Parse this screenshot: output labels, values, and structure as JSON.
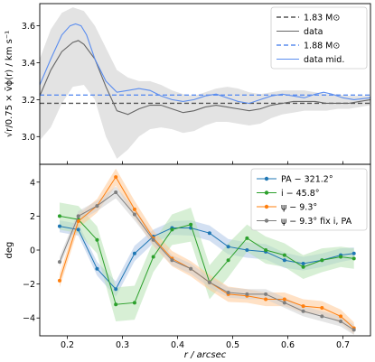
{
  "chart_data": [
    {
      "type": "line",
      "ylabel": "√r/0.75 × v̄ϕ(r) / km s⁻¹",
      "xlim": [
        0.15,
        0.75
      ],
      "ylim": [
        2.85,
        3.72
      ],
      "yticks": [
        3.0,
        3.2,
        3.4,
        3.6
      ],
      "ytick_labels": [
        "3.0",
        "3.2",
        "3.4",
        "3.6"
      ],
      "grid": false,
      "legend_position": "upper-right",
      "series": [
        {
          "name": "1.83 M⊙",
          "color": "#555555",
          "dash": "dashed",
          "x": [
            0.15,
            0.75
          ],
          "y": [
            3.18,
            3.18
          ]
        },
        {
          "name": "data",
          "color": "#666666",
          "dash": "solid",
          "x": [
            0.15,
            0.17,
            0.19,
            0.21,
            0.22,
            0.23,
            0.25,
            0.27,
            0.29,
            0.31,
            0.33,
            0.35,
            0.37,
            0.39,
            0.41,
            0.43,
            0.45,
            0.47,
            0.49,
            0.51,
            0.53,
            0.55,
            0.57,
            0.59,
            0.61,
            0.63,
            0.65,
            0.67,
            0.69,
            0.71,
            0.73,
            0.75
          ],
          "y": [
            3.22,
            3.36,
            3.46,
            3.51,
            3.52,
            3.5,
            3.42,
            3.27,
            3.14,
            3.12,
            3.15,
            3.17,
            3.17,
            3.15,
            3.13,
            3.14,
            3.16,
            3.17,
            3.16,
            3.15,
            3.14,
            3.15,
            3.17,
            3.18,
            3.19,
            3.19,
            3.19,
            3.18,
            3.18,
            3.18,
            3.19,
            3.2
          ]
        },
        {
          "name": "1.88 M⊙",
          "color": "#5b8def",
          "dash": "dashed",
          "x": [
            0.15,
            0.75
          ],
          "y": [
            3.225,
            3.225
          ]
        },
        {
          "name": "data mid.",
          "color": "#5b8def",
          "dash": "solid",
          "x": [
            0.15,
            0.17,
            0.19,
            0.205,
            0.215,
            0.225,
            0.235,
            0.25,
            0.27,
            0.29,
            0.31,
            0.33,
            0.35,
            0.37,
            0.39,
            0.41,
            0.43,
            0.45,
            0.47,
            0.49,
            0.51,
            0.53,
            0.55,
            0.57,
            0.59,
            0.61,
            0.63,
            0.65,
            0.665,
            0.68,
            0.7,
            0.72,
            0.75
          ],
          "y": [
            3.28,
            3.42,
            3.55,
            3.6,
            3.61,
            3.6,
            3.55,
            3.42,
            3.3,
            3.24,
            3.25,
            3.26,
            3.25,
            3.22,
            3.2,
            3.19,
            3.2,
            3.22,
            3.23,
            3.21,
            3.19,
            3.18,
            3.2,
            3.22,
            3.23,
            3.22,
            3.21,
            3.23,
            3.24,
            3.23,
            3.21,
            3.2,
            3.21
          ]
        }
      ],
      "band": {
        "color": "#e3e3e3",
        "x": [
          0.15,
          0.17,
          0.19,
          0.21,
          0.23,
          0.25,
          0.27,
          0.29,
          0.31,
          0.33,
          0.35,
          0.37,
          0.39,
          0.41,
          0.43,
          0.45,
          0.47,
          0.49,
          0.51,
          0.53,
          0.55,
          0.57,
          0.59,
          0.61,
          0.63,
          0.65,
          0.67,
          0.69,
          0.71,
          0.73,
          0.75
        ],
        "upper": [
          3.42,
          3.58,
          3.67,
          3.7,
          3.68,
          3.6,
          3.48,
          3.36,
          3.32,
          3.3,
          3.3,
          3.28,
          3.25,
          3.23,
          3.22,
          3.24,
          3.26,
          3.27,
          3.26,
          3.24,
          3.23,
          3.24,
          3.25,
          3.25,
          3.25,
          3.24,
          3.23,
          3.23,
          3.22,
          3.22,
          3.22
        ],
        "lower": [
          2.98,
          3.05,
          3.18,
          3.27,
          3.28,
          3.2,
          3.0,
          2.88,
          2.93,
          3.0,
          3.04,
          3.05,
          3.04,
          3.02,
          3.03,
          3.06,
          3.08,
          3.08,
          3.07,
          3.06,
          3.07,
          3.1,
          3.12,
          3.13,
          3.14,
          3.14,
          3.14,
          3.15,
          3.15,
          3.16,
          3.17
        ]
      }
    },
    {
      "type": "line",
      "xlabel": "r / arcsec",
      "ylabel": "deg",
      "xlim": [
        0.15,
        0.75
      ],
      "ylim": [
        -5.05,
        5.05
      ],
      "xticks": [
        0.2,
        0.3,
        0.4,
        0.5,
        0.6,
        0.7
      ],
      "xtick_labels": [
        "0.2",
        "0.3",
        "0.4",
        "0.5",
        "0.6",
        "0.7"
      ],
      "yticks": [
        -4,
        -2,
        0,
        2,
        4
      ],
      "ytick_labels": [
        "−4",
        "−2",
        "0",
        "2",
        "4"
      ],
      "grid": false,
      "legend_position": "upper-right",
      "x": [
        0.186,
        0.22,
        0.254,
        0.288,
        0.322,
        0.356,
        0.39,
        0.424,
        0.458,
        0.492,
        0.526,
        0.56,
        0.594,
        0.628,
        0.662,
        0.696,
        0.72
      ],
      "series": [
        {
          "name": "PA − 321.2°",
          "color": "#1f77b4",
          "band_color": "#aec7e8",
          "y": [
            1.4,
            1.2,
            -1.1,
            -2.3,
            -0.2,
            0.8,
            1.3,
            1.3,
            1.0,
            0.2,
            0.0,
            -0.1,
            -0.6,
            -0.8,
            -0.6,
            -0.3,
            -0.2
          ],
          "err": [
            0.35,
            0.35,
            0.4,
            0.45,
            0.45,
            0.4,
            0.4,
            0.45,
            0.45,
            0.45,
            0.45,
            0.45,
            0.45,
            0.4,
            0.4,
            0.4,
            0.35
          ]
        },
        {
          "name": "i − 45.8°",
          "color": "#2ca02c",
          "band_color": "#b7e1b2",
          "y": [
            2.0,
            1.8,
            0.6,
            -3.2,
            -3.1,
            -0.4,
            1.2,
            1.5,
            -1.9,
            -0.6,
            0.7,
            0.0,
            -0.3,
            -1.0,
            -0.6,
            -0.4,
            -0.5
          ],
          "err": [
            0.8,
            0.8,
            0.8,
            1.0,
            1.0,
            0.9,
            0.9,
            1.0,
            1.0,
            1.0,
            0.8,
            0.8,
            0.7,
            0.7,
            0.7,
            0.6,
            0.6
          ]
        },
        {
          "name": "ψ − 9.3°",
          "color": "#ff7f0e",
          "band_color": "#ffc896",
          "y": [
            -1.8,
            1.7,
            2.6,
            4.3,
            2.4,
            0.7,
            -0.5,
            -1.1,
            -1.9,
            -2.6,
            -2.7,
            -2.9,
            -2.9,
            -3.3,
            -3.4,
            -3.9,
            -4.6
          ],
          "err": [
            0.4,
            0.4,
            0.4,
            0.5,
            0.5,
            0.45,
            0.45,
            0.45,
            0.45,
            0.45,
            0.4,
            0.4,
            0.4,
            0.4,
            0.4,
            0.4,
            0.35
          ]
        },
        {
          "name": "ψ − 9.3° fix i, PA",
          "color": "#7f7f7f",
          "band_color": "#cfcfcf",
          "y": [
            -0.7,
            2.0,
            2.6,
            3.4,
            2.1,
            0.6,
            -0.6,
            -1.1,
            -1.9,
            -2.5,
            -2.6,
            -2.6,
            -3.1,
            -3.6,
            -3.9,
            -4.2,
            -4.7
          ],
          "err": [
            0.3,
            0.3,
            0.3,
            0.35,
            0.35,
            0.3,
            0.3,
            0.3,
            0.3,
            0.3,
            0.3,
            0.3,
            0.3,
            0.3,
            0.3,
            0.3,
            0.3
          ]
        }
      ]
    }
  ]
}
